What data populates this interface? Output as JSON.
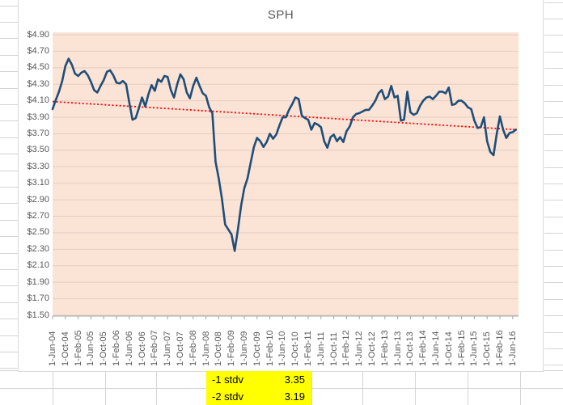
{
  "chart_data": {
    "type": "line",
    "title": "SPH",
    "series": [
      {
        "name": "SPH",
        "color": "#1F4E79",
        "values": [
          4.0,
          4.11,
          4.21,
          4.34,
          4.52,
          4.61,
          4.54,
          4.43,
          4.4,
          4.44,
          4.46,
          4.41,
          4.33,
          4.23,
          4.2,
          4.28,
          4.35,
          4.45,
          4.47,
          4.41,
          4.32,
          4.31,
          4.34,
          4.3,
          4.08,
          3.87,
          3.89,
          4.01,
          4.14,
          4.03,
          4.18,
          4.29,
          4.22,
          4.36,
          4.33,
          4.4,
          4.39,
          4.23,
          4.14,
          4.3,
          4.42,
          4.36,
          4.2,
          4.13,
          4.28,
          4.38,
          4.28,
          4.19,
          4.16,
          4.02,
          3.95,
          3.36,
          3.16,
          2.91,
          2.6,
          2.54,
          2.48,
          2.28,
          2.54,
          2.83,
          3.04,
          3.16,
          3.35,
          3.54,
          3.65,
          3.61,
          3.54,
          3.6,
          3.7,
          3.64,
          3.69,
          3.8,
          3.9,
          3.9,
          3.99,
          4.06,
          4.14,
          4.12,
          3.92,
          3.89,
          3.87,
          3.75,
          3.83,
          3.81,
          3.78,
          3.61,
          3.53,
          3.66,
          3.69,
          3.61,
          3.66,
          3.6,
          3.73,
          3.79,
          3.9,
          3.94,
          3.95,
          3.97,
          3.99,
          3.99,
          4.04,
          4.1,
          4.19,
          4.23,
          4.12,
          4.15,
          4.28,
          4.14,
          4.16,
          3.86,
          3.87,
          4.21,
          3.96,
          3.93,
          3.95,
          4.04,
          4.1,
          4.14,
          4.15,
          4.12,
          4.16,
          4.21,
          4.21,
          4.19,
          4.26,
          4.05,
          4.06,
          4.1,
          4.1,
          4.07,
          4.02,
          4.0,
          3.86,
          3.77,
          3.78,
          3.9,
          3.61,
          3.48,
          3.44,
          3.7,
          3.91,
          3.75,
          3.65,
          3.71,
          3.72,
          3.75
        ]
      }
    ],
    "x_start_label": "1-Jun-04",
    "x_tick_every_months": 4,
    "x_tick_labels": [
      "1-Jun-04",
      "1-Oct-04",
      "1-Feb-05",
      "1-Jun-05",
      "1-Oct-05",
      "1-Feb-06",
      "1-Jun-06",
      "1-Oct-06",
      "1-Feb-07",
      "1-Jun-07",
      "1-Oct-07",
      "1-Feb-08",
      "1-Jun-08",
      "1-Oct-08",
      "1-Feb-09",
      "1-Jun-09",
      "1-Oct-09",
      "1-Feb-10",
      "1-Jun-10",
      "1-Oct-10",
      "1-Feb-11",
      "1-Jun-11",
      "1-Oct-11",
      "1-Feb-12",
      "1-Jun-12",
      "1-Oct-12",
      "1-Feb-13",
      "1-Jun-13",
      "1-Oct-13",
      "1-Feb-14",
      "1-Jun-14",
      "1-Oct-14",
      "1-Feb-15",
      "1-Jun-15",
      "1-Oct-15",
      "1-Feb-16",
      "1-Jun-16"
    ],
    "y_tick_labels": [
      "$4.90",
      "$4.70",
      "$4.50",
      "$4.30",
      "$4.10",
      "$3.90",
      "$3.70",
      "$3.50",
      "$3.30",
      "$3.10",
      "$2.90",
      "$2.70",
      "$2.50",
      "$2.30",
      "$2.10",
      "$1.90",
      "$1.70",
      "$1.50"
    ],
    "ylim": [
      1.5,
      4.9
    ],
    "y_step": 0.2,
    "trendline": {
      "color": "#FF0000",
      "style": "dotted",
      "start_value": 4.09,
      "end_value": 3.75
    },
    "plot_background": "#FBE3D5",
    "gridline_color": "#E3CFC2",
    "grid": true,
    "legend": "none"
  },
  "stats_table": {
    "highlight_color": "#FFFF00",
    "rows": [
      {
        "label": "-1 stdv",
        "value": "3.35"
      },
      {
        "label": "-2 stdv",
        "value": "3.19"
      }
    ]
  }
}
